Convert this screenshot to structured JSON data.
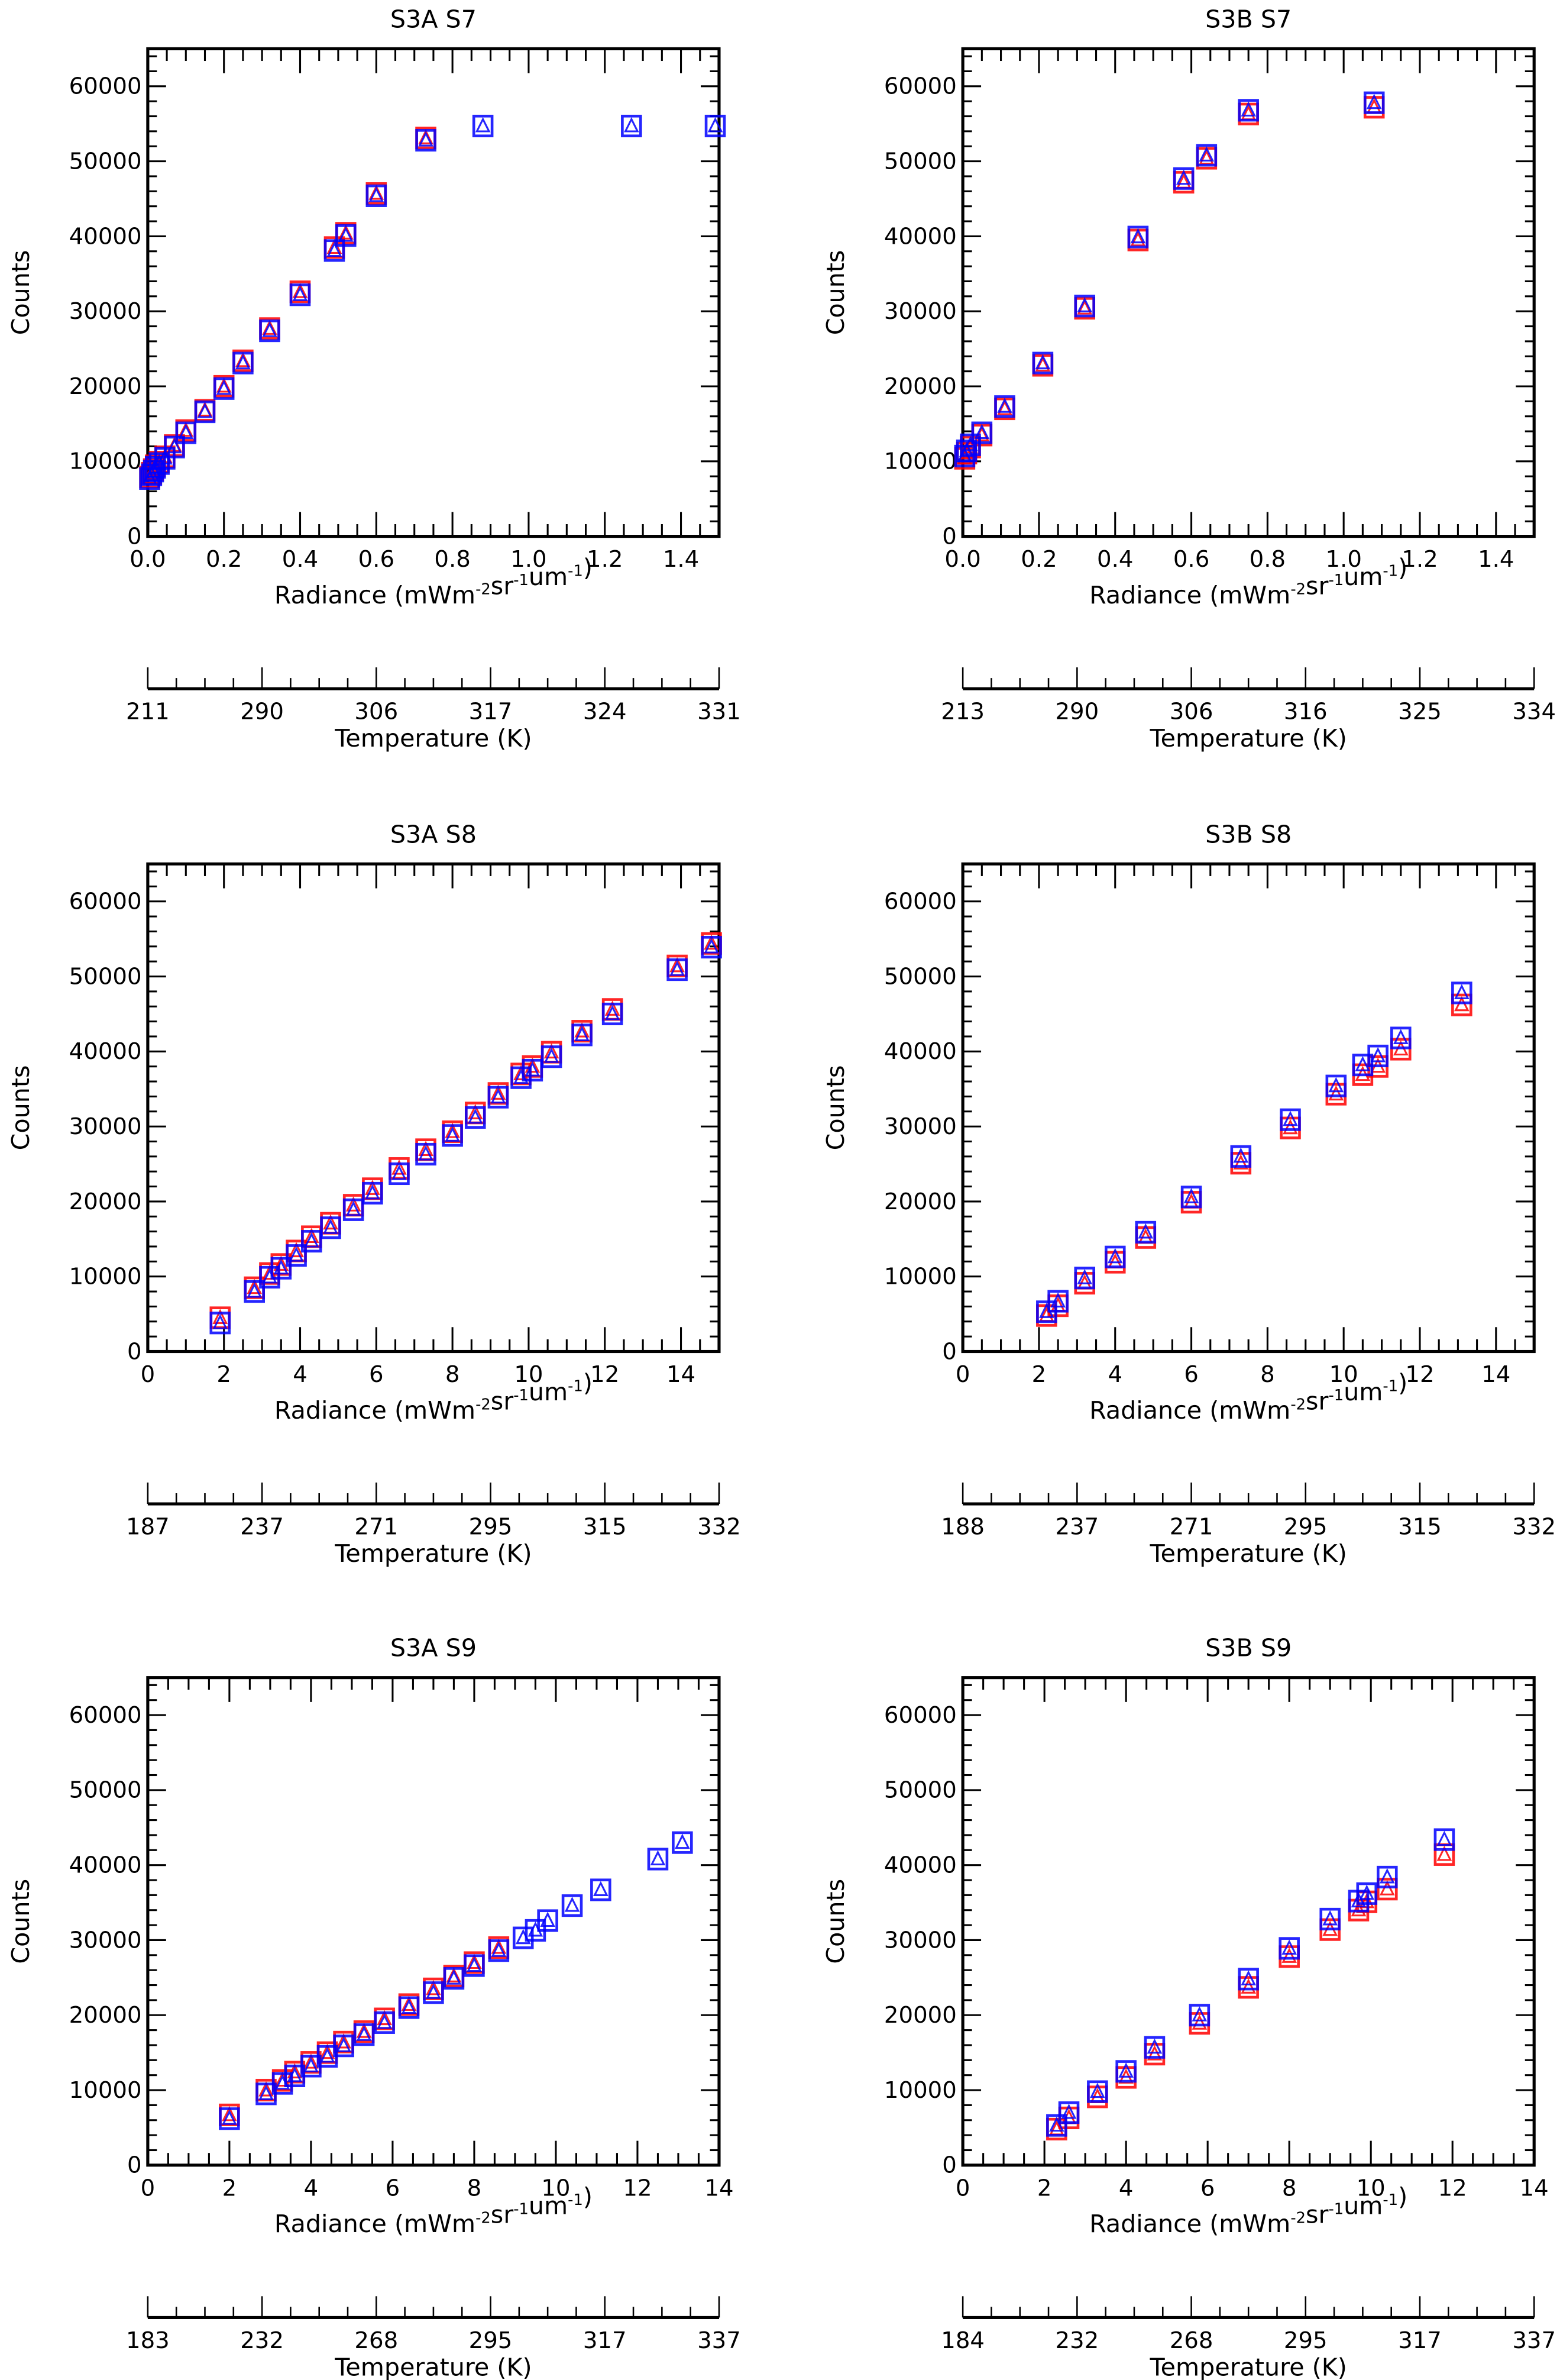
{
  "figure": {
    "layout": "3 rows x 2 columns",
    "marker_colors": {
      "series_a": "#ff0000",
      "series_b": "#0000ff"
    },
    "marker_shapes": {
      "square": "square",
      "triangle": "triangle"
    }
  },
  "chart_data": [
    {
      "id": "s3a_s7",
      "type": "scatter",
      "title": "S3A S7",
      "xlabel": "Radiance (mWm-2sr-1um-1)",
      "ylabel": "Counts",
      "xlim": [
        0,
        1.5
      ],
      "ylim": [
        0,
        65000
      ],
      "xticks": [
        "0.0",
        "0.2",
        "0.4",
        "0.6",
        "0.8",
        "1.0",
        "1.2",
        "1.4"
      ],
      "yticks": [
        "0",
        "10000",
        "20000",
        "30000",
        "40000",
        "50000",
        "60000"
      ],
      "x2label": "Temperature (K)",
      "x2ticks": [
        "211",
        "290",
        "306",
        "317",
        "324",
        "331"
      ],
      "series": [
        {
          "name": "red",
          "color": "#ff0000",
          "points": [
            [
              0.005,
              7800
            ],
            [
              0.01,
              8300
            ],
            [
              0.015,
              8800
            ],
            [
              0.02,
              9300
            ],
            [
              0.03,
              9800
            ],
            [
              0.045,
              10500
            ],
            [
              0.07,
              12000
            ],
            [
              0.1,
              14000
            ],
            [
              0.15,
              16700
            ],
            [
              0.2,
              19900
            ],
            [
              0.25,
              23300
            ],
            [
              0.32,
              27600
            ],
            [
              0.4,
              32500
            ],
            [
              0.49,
              38400
            ],
            [
              0.52,
              40300
            ],
            [
              0.6,
              45600
            ],
            [
              0.73,
              53000
            ]
          ]
        },
        {
          "name": "blue",
          "color": "#0000ff",
          "points": [
            [
              0.005,
              7600
            ],
            [
              0.01,
              8100
            ],
            [
              0.015,
              8600
            ],
            [
              0.02,
              9100
            ],
            [
              0.03,
              9600
            ],
            [
              0.045,
              10300
            ],
            [
              0.07,
              11800
            ],
            [
              0.1,
              13700
            ],
            [
              0.15,
              16500
            ],
            [
              0.2,
              19600
            ],
            [
              0.25,
              23000
            ],
            [
              0.32,
              27300
            ],
            [
              0.4,
              32100
            ],
            [
              0.49,
              38000
            ],
            [
              0.52,
              40000
            ],
            [
              0.6,
              45300
            ],
            [
              0.73,
              52700
            ],
            [
              0.88,
              54600
            ],
            [
              1.27,
              54600
            ],
            [
              1.49,
              54600
            ]
          ]
        }
      ]
    },
    {
      "id": "s3b_s7",
      "type": "scatter",
      "title": "S3B S7",
      "xlabel": "Radiance (mWm-2sr-1um-1)",
      "ylabel": "Counts",
      "xlim": [
        0,
        1.5
      ],
      "ylim": [
        0,
        65000
      ],
      "xticks": [
        "0.0",
        "0.2",
        "0.4",
        "0.6",
        "0.8",
        "1.0",
        "1.2",
        "1.4"
      ],
      "yticks": [
        "0",
        "10000",
        "20000",
        "30000",
        "40000",
        "50000",
        "60000"
      ],
      "x2label": "Temperature (K)",
      "x2ticks": [
        "213",
        "290",
        "306",
        "316",
        "325",
        "334"
      ],
      "series": [
        {
          "name": "red",
          "color": "#ff0000",
          "points": [
            [
              0.005,
              10300
            ],
            [
              0.01,
              11000
            ],
            [
              0.02,
              11800
            ],
            [
              0.05,
              13400
            ],
            [
              0.11,
              16900
            ],
            [
              0.21,
              22700
            ],
            [
              0.32,
              30300
            ],
            [
              0.46,
              39400
            ],
            [
              0.58,
              47100
            ],
            [
              0.64,
              50300
            ],
            [
              0.75,
              56200
            ],
            [
              1.08,
              57100
            ]
          ]
        },
        {
          "name": "blue",
          "color": "#0000ff",
          "points": [
            [
              0.005,
              10600
            ],
            [
              0.01,
              11300
            ],
            [
              0.02,
              12100
            ],
            [
              0.05,
              13700
            ],
            [
              0.11,
              17200
            ],
            [
              0.21,
              23000
            ],
            [
              0.32,
              30600
            ],
            [
              0.46,
              39800
            ],
            [
              0.58,
              47600
            ],
            [
              0.64,
              50700
            ],
            [
              0.75,
              56700
            ],
            [
              1.08,
              57700
            ]
          ]
        }
      ]
    },
    {
      "id": "s3a_s8",
      "type": "scatter",
      "title": "S3A S8",
      "xlabel": "Radiance (mWm-2sr-1um-1)",
      "ylabel": "Counts",
      "xlim": [
        0,
        15
      ],
      "ylim": [
        0,
        65000
      ],
      "xticks": [
        "0",
        "2",
        "4",
        "6",
        "8",
        "10",
        "12",
        "14"
      ],
      "yticks": [
        "0",
        "10000",
        "20000",
        "30000",
        "40000",
        "50000",
        "60000"
      ],
      "x2label": "Temperature (K)",
      "x2ticks": [
        "187",
        "237",
        "271",
        "295",
        "315",
        "332"
      ],
      "series": [
        {
          "name": "red",
          "color": "#ff0000",
          "points": [
            [
              1.9,
              4400
            ],
            [
              2.8,
              8400
            ],
            [
              3.2,
              10300
            ],
            [
              3.5,
              11500
            ],
            [
              3.9,
              13300
            ],
            [
              4.3,
              15200
            ],
            [
              4.8,
              17000
            ],
            [
              5.4,
              19400
            ],
            [
              5.9,
              21600
            ],
            [
              6.6,
              24300
            ],
            [
              7.3,
              26800
            ],
            [
              8.0,
              29200
            ],
            [
              8.6,
              31700
            ],
            [
              9.2,
              34300
            ],
            [
              9.8,
              36900
            ],
            [
              10.1,
              37900
            ],
            [
              10.6,
              39800
            ],
            [
              11.4,
              42600
            ],
            [
              12.2,
              45500
            ],
            [
              13.9,
              51300
            ],
            [
              14.8,
              54300
            ]
          ]
        },
        {
          "name": "blue",
          "color": "#0000ff",
          "points": [
            [
              1.9,
              3700
            ],
            [
              2.8,
              7900
            ],
            [
              3.2,
              9800
            ],
            [
              3.5,
              11000
            ],
            [
              3.9,
              12700
            ],
            [
              4.3,
              14600
            ],
            [
              4.8,
              16400
            ],
            [
              5.4,
              18800
            ],
            [
              5.9,
              21000
            ],
            [
              6.6,
              23600
            ],
            [
              7.3,
              26200
            ],
            [
              8.0,
              28700
            ],
            [
              8.6,
              31100
            ],
            [
              9.2,
              33800
            ],
            [
              9.8,
              36400
            ],
            [
              10.1,
              37400
            ],
            [
              10.6,
              39200
            ],
            [
              11.4,
              42100
            ],
            [
              12.2,
              44900
            ],
            [
              13.9,
              50800
            ],
            [
              14.8,
              53800
            ]
          ]
        }
      ]
    },
    {
      "id": "s3b_s8",
      "type": "scatter",
      "title": "S3B S8",
      "xlabel": "Radiance (mWm-2sr-1um-1)",
      "ylabel": "Counts",
      "xlim": [
        0,
        15
      ],
      "ylim": [
        0,
        65000
      ],
      "xticks": [
        "0",
        "2",
        "4",
        "6",
        "8",
        "10",
        "12",
        "14"
      ],
      "yticks": [
        "0",
        "10000",
        "20000",
        "30000",
        "40000",
        "50000",
        "60000"
      ],
      "x2label": "Temperature (K)",
      "x2ticks": [
        "188",
        "237",
        "271",
        "295",
        "315",
        "332"
      ],
      "series": [
        {
          "name": "red",
          "color": "#ff0000",
          "points": [
            [
              2.2,
              4700
            ],
            [
              2.5,
              6000
            ],
            [
              3.2,
              9000
            ],
            [
              4.0,
              11800
            ],
            [
              4.8,
              15100
            ],
            [
              6.0,
              19800
            ],
            [
              7.3,
              25000
            ],
            [
              8.6,
              29700
            ],
            [
              9.8,
              34200
            ],
            [
              10.5,
              36800
            ],
            [
              10.9,
              37900
            ],
            [
              11.5,
              40200
            ],
            [
              13.1,
              46100
            ]
          ]
        },
        {
          "name": "blue",
          "color": "#0000ff",
          "points": [
            [
              2.2,
              5200
            ],
            [
              2.5,
              6600
            ],
            [
              3.2,
              9700
            ],
            [
              4.0,
              12500
            ],
            [
              4.8,
              15800
            ],
            [
              6.0,
              20500
            ],
            [
              7.3,
              25900
            ],
            [
              8.6,
              30800
            ],
            [
              9.8,
              35300
            ],
            [
              10.5,
              38100
            ],
            [
              10.9,
              39300
            ],
            [
              11.5,
              41700
            ],
            [
              13.1,
              47700
            ]
          ]
        }
      ]
    },
    {
      "id": "s3a_s9",
      "type": "scatter",
      "title": "S3A S9",
      "xlabel": "Radiance (mWm-2sr-1um-1)",
      "ylabel": "Counts",
      "xlim": [
        0,
        14
      ],
      "ylim": [
        0,
        65000
      ],
      "xticks": [
        "0",
        "2",
        "4",
        "6",
        "8",
        "10",
        "12",
        "14"
      ],
      "yticks": [
        "0",
        "10000",
        "20000",
        "30000",
        "40000",
        "50000",
        "60000"
      ],
      "x2label": "Temperature (K)",
      "x2ticks": [
        "183",
        "232",
        "268",
        "295",
        "317",
        "337"
      ],
      "series": [
        {
          "name": "red",
          "color": "#ff0000",
          "points": [
            [
              2.0,
              6600
            ],
            [
              2.9,
              9900
            ],
            [
              3.3,
              11200
            ],
            [
              3.6,
              12300
            ],
            [
              4.0,
              13600
            ],
            [
              4.4,
              14900
            ],
            [
              4.8,
              16300
            ],
            [
              5.3,
              17700
            ],
            [
              5.8,
              19400
            ],
            [
              6.4,
              21300
            ],
            [
              7.0,
              23400
            ],
            [
              7.5,
              25100
            ],
            [
              8.0,
              26900
            ],
            [
              8.6,
              28900
            ]
          ]
        },
        {
          "name": "blue",
          "color": "#0000ff",
          "points": [
            [
              2.0,
              6100
            ],
            [
              2.9,
              9400
            ],
            [
              3.3,
              10800
            ],
            [
              3.6,
              11800
            ],
            [
              4.0,
              13100
            ],
            [
              4.4,
              14400
            ],
            [
              4.8,
              15800
            ],
            [
              5.3,
              17300
            ],
            [
              5.8,
              18900
            ],
            [
              6.4,
              20900
            ],
            [
              7.0,
              22900
            ],
            [
              7.5,
              24800
            ],
            [
              8.0,
              26500
            ],
            [
              8.6,
              28500
            ],
            [
              9.2,
              30200
            ],
            [
              9.5,
              31200
            ],
            [
              9.8,
              32500
            ],
            [
              10.4,
              34500
            ],
            [
              11.1,
              36600
            ],
            [
              12.5,
              40700
            ],
            [
              13.1,
              42900
            ]
          ]
        }
      ]
    },
    {
      "id": "s3b_s9",
      "type": "scatter",
      "title": "S3B S9",
      "xlabel": "Radiance (mWm-2sr-1um-1)",
      "ylabel": "Counts",
      "xlim": [
        0,
        14
      ],
      "ylim": [
        0,
        65000
      ],
      "xticks": [
        "0",
        "2",
        "4",
        "6",
        "8",
        "10",
        "12",
        "14"
      ],
      "yticks": [
        "0",
        "10000",
        "20000",
        "30000",
        "40000",
        "50000",
        "60000"
      ],
      "x2label": "Temperature (K)",
      "x2ticks": [
        "184",
        "232",
        "268",
        "295",
        "317",
        "337"
      ],
      "series": [
        {
          "name": "red",
          "color": "#ff0000",
          "points": [
            [
              2.3,
              4700
            ],
            [
              2.6,
              6200
            ],
            [
              3.3,
              9000
            ],
            [
              4.0,
              11600
            ],
            [
              4.7,
              14700
            ],
            [
              5.8,
              18800
            ],
            [
              7.0,
              23600
            ],
            [
              8.0,
              27700
            ],
            [
              9.0,
              31300
            ],
            [
              9.7,
              33900
            ],
            [
              9.9,
              35000
            ],
            [
              10.4,
              36700
            ],
            [
              11.8,
              41300
            ]
          ]
        },
        {
          "name": "blue",
          "color": "#0000ff",
          "points": [
            [
              2.3,
              5200
            ],
            [
              2.6,
              6900
            ],
            [
              3.3,
              9700
            ],
            [
              4.0,
              12400
            ],
            [
              4.7,
              15600
            ],
            [
              5.8,
              19900
            ],
            [
              7.0,
              24700
            ],
            [
              8.0,
              28800
            ],
            [
              9.0,
              32700
            ],
            [
              9.7,
              35100
            ],
            [
              9.9,
              36100
            ],
            [
              10.4,
              38300
            ],
            [
              11.8,
              43300
            ]
          ]
        }
      ]
    }
  ]
}
